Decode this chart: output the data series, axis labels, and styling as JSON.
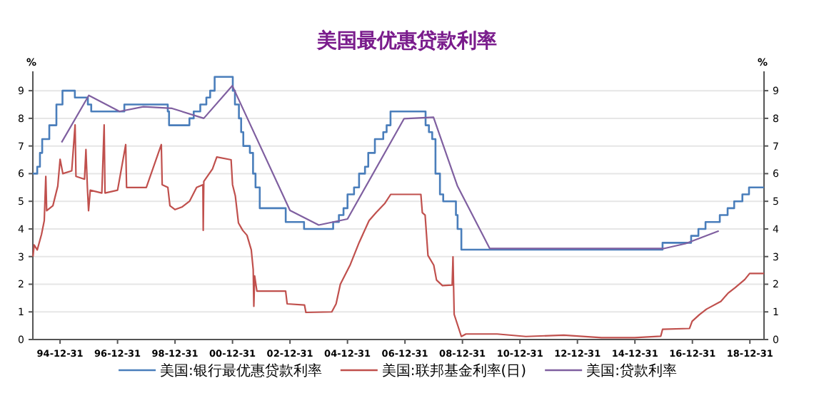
{
  "chart_data": {
    "type": "line",
    "title": "美国最优惠贷款利率",
    "ylabel": "%",
    "y2label": "%",
    "xlim": [
      "1994-01-20",
      "2019-06-28"
    ],
    "ylim": [
      0,
      9.7
    ],
    "y2lim": [
      0,
      9.7
    ],
    "xticks": [
      {
        "value": "1994-12-31",
        "label": "94-12-31"
      },
      {
        "value": "1996-12-31",
        "label": "96-12-31"
      },
      {
        "value": "1998-12-31",
        "label": "98-12-31"
      },
      {
        "value": "2000-12-31",
        "label": "00-12-31"
      },
      {
        "value": "2002-12-31",
        "label": "02-12-31"
      },
      {
        "value": "2004-12-31",
        "label": "04-12-31"
      },
      {
        "value": "2006-12-31",
        "label": "06-12-31"
      },
      {
        "value": "2008-12-31",
        "label": "08-12-31"
      },
      {
        "value": "2010-12-31",
        "label": "10-12-31"
      },
      {
        "value": "2012-12-31",
        "label": "12-12-31"
      },
      {
        "value": "2014-12-31",
        "label": "14-12-31"
      },
      {
        "value": "2016-12-31",
        "label": "16-12-31"
      },
      {
        "value": "2018-12-31",
        "label": "18-12-31"
      }
    ],
    "yticks": [
      0,
      1,
      2,
      3,
      4,
      5,
      6,
      7,
      8,
      9
    ],
    "y2ticks": [
      0,
      1,
      2,
      3,
      4,
      5,
      6,
      7,
      8,
      9
    ],
    "grid": "y",
    "legend": "bottom",
    "series": [
      {
        "name": "美国:银行最优惠贷款利率",
        "type": "step",
        "color": "#4a7ebb",
        "x": [
          "1994-01-20",
          "1994-03-15",
          "1994-04-19",
          "1994-05-17",
          "1994-08-16",
          "1994-11-15",
          "1995-02-01",
          "1995-07-06",
          "1995-12-19",
          "1996-02-01",
          "1997-03-26",
          "1998-09-30",
          "1998-10-16",
          "1999-07-01",
          "1999-08-25",
          "1999-11-17",
          "2000-02-03",
          "2000-03-21",
          "2000-05-17",
          "2001-01-04",
          "2001-02-01",
          "2001-03-21",
          "2001-04-19",
          "2001-05-16",
          "2001-08-08",
          "2001-09-18",
          "2001-10-19",
          "2001-12-12",
          "2002-11-07",
          "2003-06-27",
          "2004-07-01",
          "2004-09-13",
          "2004-11-11",
          "2005-01-01",
          "2005-03-23",
          "2005-05-26",
          "2005-08-10",
          "2005-09-21",
          "2005-12-14",
          "2006-03-29",
          "2006-05-11",
          "2006-06-30",
          "2007-09-19",
          "2007-10-31",
          "2007-12-12",
          "2008-01-23",
          "2008-03-19",
          "2008-04-30",
          "2008-10-09",
          "2008-10-30",
          "2008-12-17",
          "2015-12-17",
          "2016-12-15",
          "2017-03-16",
          "2017-06-15",
          "2017-12-14",
          "2018-03-22",
          "2018-06-14",
          "2018-09-27",
          "2018-12-20",
          "2019-06-28"
        ],
        "values": [
          6.0,
          6.25,
          6.75,
          7.25,
          7.75,
          8.5,
          9.0,
          8.75,
          8.5,
          8.25,
          8.5,
          8.25,
          7.75,
          8.0,
          8.25,
          8.5,
          8.75,
          9.0,
          9.5,
          9.0,
          8.5,
          8.0,
          7.5,
          7.0,
          6.75,
          6.0,
          5.5,
          4.75,
          4.25,
          4.0,
          4.25,
          4.5,
          4.75,
          5.25,
          5.5,
          6.0,
          6.25,
          6.75,
          7.25,
          7.5,
          7.75,
          8.25,
          7.75,
          7.5,
          7.25,
          6.0,
          5.25,
          5.0,
          4.5,
          4.0,
          3.25,
          3.5,
          3.75,
          4.0,
          4.25,
          4.5,
          4.75,
          5.0,
          5.25,
          5.5,
          5.5
        ]
      },
      {
        "name": "美国:联邦基金利率(日)",
        "color": "#c0504d",
        "x": [
          "1994-01-22",
          "1994-02-06",
          "1994-03-15",
          "1994-05-08",
          "1994-06-13",
          "1994-07-02",
          "1994-07-13",
          "1994-10-01",
          "1994-12-02",
          "1995-01-01",
          "1995-02-06",
          "1995-05-27",
          "1995-07-09",
          "1995-07-20",
          "1995-11-07",
          "1995-11-25",
          "1995-12-13",
          "1995-12-28",
          "1996-01-19",
          "1996-06-14",
          "1996-07-13",
          "1996-07-24",
          "1997-01-01",
          "1997-04-13",
          "1997-04-24",
          "1998-01-01",
          "1998-07-09",
          "1998-07-20",
          "1998-10-01",
          "1998-10-27",
          "1999-01-01",
          "1999-04-02",
          "1999-07-02",
          "1999-10-01",
          "1999-12-20",
          "1999-12-24",
          "2000-01-01",
          "2000-04-20",
          "2000-06-14",
          "2000-12-13",
          "2001-01-01",
          "2001-02-06",
          "2001-03-15",
          "2001-05-08",
          "2001-07-02",
          "2001-08-26",
          "2001-09-20",
          "2001-09-28",
          "2001-10-08",
          "2001-11-06",
          "2002-11-06",
          "2002-11-25",
          "2003-07-02",
          "2003-07-20",
          "2004-06-14",
          "2004-08-08",
          "2004-10-01",
          "2005-02-06",
          "2005-05-27",
          "2005-10-01",
          "2006-01-01",
          "2006-04-20",
          "2006-07-02",
          "2007-07-20",
          "2007-08-08",
          "2007-09-13",
          "2007-10-19",
          "2008-01-01",
          "2008-02-06",
          "2008-04-20",
          "2008-08-22",
          "2008-09-02",
          "2008-09-17",
          "2008-12-17",
          "2009-02-14",
          "2010-03-15",
          "2011-03-15",
          "2012-07-09",
          "2013-11-03",
          "2014-12-28",
          "2015-11-25",
          "2015-12-17",
          "2016-11-25",
          "2016-12-28",
          "2017-03-29",
          "2017-06-28",
          "2017-12-28",
          "2018-03-29",
          "2018-06-28",
          "2018-10-27",
          "2018-12-28",
          "2019-06-28"
        ],
        "values": [
          3.0,
          3.42,
          3.24,
          3.8,
          4.3,
          5.9,
          4.66,
          4.84,
          5.55,
          6.52,
          6.0,
          6.1,
          7.76,
          5.9,
          5.8,
          6.87,
          5.5,
          4.66,
          5.4,
          5.3,
          7.76,
          5.3,
          5.4,
          7.05,
          5.5,
          5.5,
          7.05,
          5.6,
          5.5,
          4.84,
          4.7,
          4.8,
          5.0,
          5.5,
          5.6,
          3.95,
          5.72,
          6.17,
          6.6,
          6.5,
          5.6,
          5.19,
          4.22,
          3.95,
          3.77,
          3.24,
          2.53,
          1.2,
          2.3,
          1.75,
          1.75,
          1.29,
          1.25,
          0.98,
          1.0,
          1.29,
          2.0,
          2.71,
          3.51,
          4.3,
          4.6,
          4.93,
          5.25,
          5.25,
          4.59,
          4.5,
          3.04,
          2.69,
          2.15,
          1.95,
          1.97,
          2.99,
          0.91,
          0.11,
          0.2,
          0.2,
          0.11,
          0.16,
          0.07,
          0.07,
          0.12,
          0.37,
          0.4,
          0.66,
          0.9,
          1.1,
          1.38,
          1.68,
          1.88,
          2.17,
          2.39,
          2.39
        ]
      },
      {
        "name": "美国:贷款利率",
        "color": "#7f5fa0",
        "x": [
          "1995-01-20",
          "1995-12-31",
          "1997-01-26",
          "1997-11-24",
          "1998-11-24",
          "1999-12-31",
          "2000-12-28",
          "2002-12-31",
          "2003-12-31",
          "2004-12-31",
          "2006-12-20",
          "2007-12-28",
          "2008-10-27",
          "2009-12-13",
          "2015-12-31",
          "2016-10-05",
          "2017-12-01"
        ],
        "values": [
          7.13,
          8.83,
          8.25,
          8.42,
          8.36,
          8.0,
          9.18,
          4.67,
          4.14,
          4.36,
          7.99,
          8.04,
          5.56,
          3.29,
          3.29,
          3.47,
          3.93
        ]
      }
    ]
  }
}
